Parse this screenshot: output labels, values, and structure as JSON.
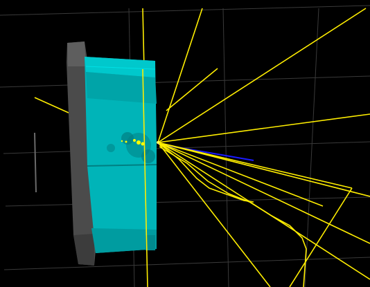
{
  "scene": {
    "background": "#000000",
    "grid_color": "#3a3a3a",
    "track_color": "#ffee00",
    "detector_face_color": "#00b8bc",
    "detector_side_color": "#4a4a4a",
    "beam_color": "#1a1aff",
    "hit_color": "#ffff00",
    "track_count": 18
  }
}
